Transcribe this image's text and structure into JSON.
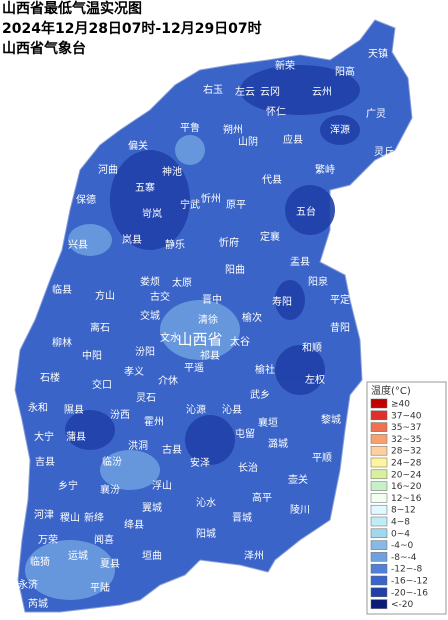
{
  "header": {
    "lines": [
      "山西省最低气温实况图",
      "2024年12月28日07时-12月29日07时",
      "山西省气象台"
    ]
  },
  "map": {
    "province_label": "山西省",
    "counties": [
      "天镇",
      "阳高",
      "新荣",
      "左云",
      "右玉",
      "云冈",
      "云州",
      "怀仁",
      "广灵",
      "浑源",
      "平鲁",
      "朔州",
      "山阴",
      "应县",
      "灵丘",
      "偏关",
      "河曲",
      "五寨",
      "神池",
      "代县",
      "繁峙",
      "宁武",
      "忻州",
      "原平",
      "保德",
      "岢岚",
      "五台",
      "兴县",
      "岚县",
      "静乐",
      "忻府",
      "定襄",
      "盂县",
      "阳泉",
      "平定",
      "昔阳",
      "寿阳",
      "临县",
      "方山",
      "娄烦",
      "阳曲",
      "太原",
      "古交",
      "晋中",
      "榆次",
      "离石",
      "交城",
      "清徐",
      "柳林",
      "中阳",
      "汾阳",
      "文水",
      "祁县",
      "太谷",
      "和顺",
      "石楼",
      "孝义",
      "介休",
      "平遥",
      "榆社",
      "左权",
      "交口",
      "永和",
      "灵石",
      "隰县",
      "汾西",
      "霍州",
      "沁源",
      "沁县",
      "武乡",
      "黎城",
      "大宁",
      "蒲县",
      "洪洞",
      "古县",
      "安泽",
      "襄垣",
      "屯留",
      "潞城",
      "平顺",
      "吉县",
      "临汾",
      "长治",
      "壶关",
      "乡宁",
      "襄汾",
      "浮山",
      "高平",
      "陵川",
      "河津",
      "稷山",
      "新绛",
      "翼城",
      "沁水",
      "阳城",
      "泽州",
      "晋城",
      "绛县",
      "万荣",
      "闻喜",
      "临猗",
      "夏县",
      "垣曲",
      "运城",
      "永济",
      "平陆",
      "芮城"
    ]
  },
  "legend": {
    "title": "温度(°C)",
    "items": [
      {
        "label": "≥40",
        "color": "#c00000"
      },
      {
        "label": "37~40",
        "color": "#e0302a"
      },
      {
        "label": "35~37",
        "color": "#f07050"
      },
      {
        "label": "32~35",
        "color": "#f8a070"
      },
      {
        "label": "28~32",
        "color": "#fcd0a0"
      },
      {
        "label": "24~28",
        "color": "#fff5a0"
      },
      {
        "label": "20~24",
        "color": "#d8f0a0"
      },
      {
        "label": "16~20",
        "color": "#c8f0c8"
      },
      {
        "label": "12~16",
        "color": "#f0fff0"
      },
      {
        "label": "8~12",
        "color": "#e0f8ff"
      },
      {
        "label": "4~8",
        "color": "#c0ecf8"
      },
      {
        "label": "0~4",
        "color": "#a0d8f0"
      },
      {
        "label": "-4~0",
        "color": "#88b8e8"
      },
      {
        "label": "-8~-4",
        "color": "#6fa0e0"
      },
      {
        "label": "-12~-8",
        "color": "#5080d8"
      },
      {
        "label": "-16~-12",
        "color": "#3a64c8"
      },
      {
        "label": "-20~-16",
        "color": "#2040a8"
      },
      {
        "label": "<-20",
        "color": "#0a1a78"
      }
    ]
  }
}
